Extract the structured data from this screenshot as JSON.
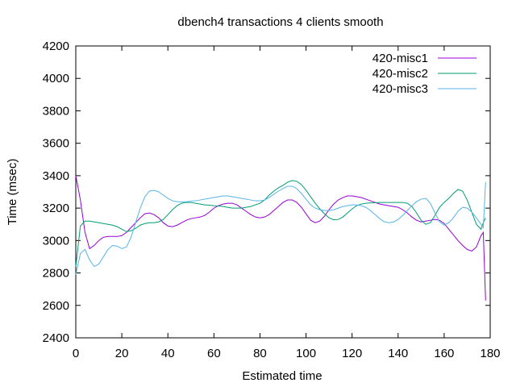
{
  "chart_data": {
    "type": "line",
    "title": "dbench4 transactions 4 clients smooth",
    "xlabel": "Estimated time",
    "ylabel": "Time (msec)",
    "xlim": [
      0,
      180
    ],
    "ylim": [
      2400,
      4200
    ],
    "xticks": [
      0,
      20,
      40,
      60,
      80,
      100,
      120,
      140,
      160,
      180
    ],
    "yticks": [
      2400,
      2600,
      2800,
      3000,
      3200,
      3400,
      3600,
      3800,
      4000,
      4200
    ],
    "grid": false,
    "legend": "top-right",
    "series": [
      {
        "name": "420-misc1",
        "color": "#9400d3",
        "x": [
          0,
          2,
          4,
          6,
          8,
          10,
          12,
          14,
          16,
          18,
          20,
          22,
          24,
          26,
          28,
          30,
          32,
          34,
          36,
          38,
          40,
          42,
          44,
          46,
          48,
          50,
          52,
          54,
          56,
          58,
          60,
          62,
          64,
          66,
          68,
          70,
          72,
          74,
          76,
          78,
          80,
          82,
          84,
          86,
          88,
          90,
          92,
          94,
          96,
          98,
          100,
          102,
          104,
          106,
          108,
          110,
          112,
          114,
          116,
          118,
          120,
          122,
          124,
          126,
          128,
          130,
          132,
          134,
          136,
          138,
          140,
          142,
          144,
          146,
          148,
          150,
          152,
          154,
          156,
          158,
          160,
          162,
          164,
          166,
          168,
          170,
          172,
          174,
          176,
          177,
          178
        ],
        "y": [
          3400,
          3250,
          3050,
          2950,
          2970,
          3000,
          3020,
          3025,
          3025,
          3025,
          3030,
          3050,
          3080,
          3110,
          3140,
          3165,
          3170,
          3160,
          3140,
          3110,
          3090,
          3085,
          3095,
          3110,
          3125,
          3135,
          3140,
          3145,
          3155,
          3175,
          3200,
          3215,
          3225,
          3230,
          3230,
          3220,
          3200,
          3180,
          3160,
          3145,
          3140,
          3145,
          3160,
          3185,
          3210,
          3235,
          3250,
          3250,
          3235,
          3205,
          3165,
          3125,
          3110,
          3120,
          3150,
          3190,
          3225,
          3250,
          3265,
          3275,
          3275,
          3270,
          3265,
          3255,
          3245,
          3235,
          3225,
          3220,
          3215,
          3210,
          3205,
          3190,
          3170,
          3145,
          3125,
          3115,
          3120,
          3125,
          3130,
          3125,
          3105,
          3070,
          3035,
          3000,
          2970,
          2945,
          2935,
          2960,
          3030,
          3050,
          2630
        ]
      },
      {
        "name": "420-misc2",
        "color": "#009e73",
        "x": [
          0,
          2,
          4,
          6,
          8,
          10,
          12,
          14,
          16,
          18,
          20,
          22,
          24,
          26,
          28,
          30,
          32,
          34,
          36,
          38,
          40,
          42,
          44,
          46,
          48,
          50,
          52,
          54,
          56,
          58,
          60,
          62,
          64,
          66,
          68,
          70,
          72,
          74,
          76,
          78,
          80,
          82,
          84,
          86,
          88,
          90,
          92,
          94,
          96,
          98,
          100,
          102,
          104,
          106,
          108,
          110,
          112,
          114,
          116,
          118,
          120,
          122,
          124,
          126,
          128,
          130,
          132,
          134,
          136,
          138,
          140,
          142,
          144,
          146,
          148,
          150,
          152,
          154,
          156,
          158,
          160,
          162,
          164,
          166,
          168,
          170,
          172,
          174,
          176,
          177,
          178
        ],
        "y": [
          2840,
          3090,
          3120,
          3120,
          3115,
          3110,
          3105,
          3100,
          3095,
          3085,
          3070,
          3055,
          3060,
          3075,
          3095,
          3105,
          3110,
          3110,
          3115,
          3130,
          3160,
          3190,
          3215,
          3230,
          3235,
          3235,
          3230,
          3225,
          3220,
          3218,
          3215,
          3213,
          3210,
          3205,
          3200,
          3200,
          3200,
          3205,
          3210,
          3220,
          3230,
          3250,
          3280,
          3305,
          3325,
          3340,
          3360,
          3370,
          3365,
          3345,
          3310,
          3270,
          3230,
          3195,
          3165,
          3140,
          3128,
          3130,
          3145,
          3170,
          3195,
          3215,
          3225,
          3230,
          3232,
          3233,
          3235,
          3235,
          3235,
          3235,
          3235,
          3235,
          3230,
          3210,
          3170,
          3125,
          3100,
          3110,
          3155,
          3205,
          3235,
          3260,
          3290,
          3315,
          3305,
          3250,
          3175,
          3100,
          3070,
          3110,
          3140
        ]
      },
      {
        "name": "420-misc3",
        "color": "#56b4e9",
        "x": [
          0,
          2,
          4,
          6,
          8,
          10,
          12,
          14,
          16,
          18,
          20,
          22,
          24,
          26,
          28,
          30,
          32,
          34,
          36,
          38,
          40,
          42,
          44,
          46,
          48,
          50,
          52,
          54,
          56,
          58,
          60,
          62,
          64,
          66,
          68,
          70,
          72,
          74,
          76,
          78,
          80,
          82,
          84,
          86,
          88,
          90,
          92,
          94,
          96,
          98,
          100,
          102,
          104,
          106,
          108,
          110,
          112,
          114,
          116,
          118,
          120,
          122,
          124,
          126,
          128,
          130,
          132,
          134,
          136,
          138,
          140,
          142,
          144,
          146,
          148,
          150,
          152,
          154,
          156,
          158,
          160,
          162,
          164,
          166,
          168,
          170,
          172,
          174,
          176,
          177,
          178
        ],
        "y": [
          2790,
          2920,
          2945,
          2880,
          2840,
          2855,
          2900,
          2945,
          2970,
          2965,
          2950,
          2960,
          3020,
          3110,
          3200,
          3270,
          3305,
          3310,
          3300,
          3280,
          3260,
          3245,
          3240,
          3238,
          3240,
          3243,
          3245,
          3250,
          3255,
          3260,
          3265,
          3270,
          3275,
          3275,
          3270,
          3265,
          3260,
          3255,
          3250,
          3245,
          3245,
          3250,
          3265,
          3285,
          3305,
          3320,
          3335,
          3335,
          3320,
          3290,
          3255,
          3220,
          3200,
          3190,
          3185,
          3185,
          3190,
          3200,
          3210,
          3215,
          3220,
          3220,
          3215,
          3205,
          3185,
          3160,
          3135,
          3115,
          3110,
          3115,
          3130,
          3155,
          3185,
          3215,
          3240,
          3255,
          3260,
          3230,
          3170,
          3115,
          3095,
          3110,
          3140,
          3180,
          3205,
          3200,
          3175,
          3140,
          3100,
          3080,
          3360
        ]
      }
    ]
  }
}
